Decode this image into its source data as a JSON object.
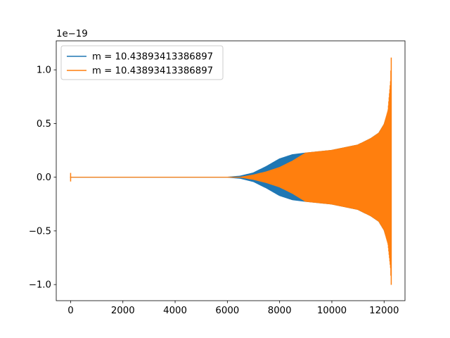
{
  "chart_data": {
    "type": "line",
    "title": "",
    "xlabel": "",
    "ylabel": "",
    "y_offset_label": "1e−19",
    "xlim": [
      -550,
      12800
    ],
    "ylim": [
      -1.15,
      1.27
    ],
    "xticks": [
      0,
      2000,
      4000,
      6000,
      8000,
      10000,
      12000
    ],
    "xtick_labels": [
      "0",
      "2000",
      "4000",
      "6000",
      "8000",
      "10000",
      "12000"
    ],
    "yticks": [
      -1.0,
      -0.5,
      0.0,
      0.5,
      1.0
    ],
    "ytick_labels": [
      "−1.0",
      "−0.5",
      "0.0",
      "0.5",
      "1.0"
    ],
    "grid": false,
    "legend_position": "upper-left",
    "series": [
      {
        "name": "m = 10.43893413386897",
        "color": "#1f77b4",
        "style": "oscillating envelope",
        "envelope_x": [
          0,
          6000,
          6500,
          7000,
          7500,
          8000,
          8500,
          9000,
          10000,
          11000,
          11500,
          11800,
          12000,
          12150,
          12250,
          12270
        ],
        "envelope_upper": [
          0.0,
          0.0,
          0.01,
          0.04,
          0.1,
          0.17,
          0.21,
          0.225,
          0.25,
          0.3,
          0.36,
          0.41,
          0.49,
          0.6,
          0.7,
          0.72
        ],
        "envelope_lower": [
          0.0,
          0.0,
          -0.01,
          -0.04,
          -0.1,
          -0.17,
          -0.21,
          -0.225,
          -0.25,
          -0.3,
          -0.36,
          -0.41,
          -0.49,
          -0.6,
          -0.7,
          -0.72
        ]
      },
      {
        "name": "m = 10.43893413386897",
        "color": "#ff7f0e",
        "style": "oscillating envelope",
        "envelope_x": [
          0,
          6000,
          6500,
          7000,
          7500,
          8000,
          8500,
          9000,
          10000,
          11000,
          11500,
          11800,
          12000,
          12150,
          12250,
          12280
        ],
        "envelope_upper": [
          0.0,
          0.0,
          0.0,
          0.02,
          0.05,
          0.09,
          0.15,
          0.225,
          0.25,
          0.3,
          0.36,
          0.41,
          0.49,
          0.62,
          0.9,
          1.17
        ],
        "envelope_lower": [
          0.0,
          0.0,
          0.0,
          -0.02,
          -0.05,
          -0.09,
          -0.15,
          -0.225,
          -0.25,
          -0.3,
          -0.36,
          -0.41,
          -0.49,
          -0.62,
          -0.85,
          -1.04
        ],
        "initial_spike": {
          "x": 0,
          "upper": 0.04,
          "lower": -0.04
        }
      }
    ]
  }
}
